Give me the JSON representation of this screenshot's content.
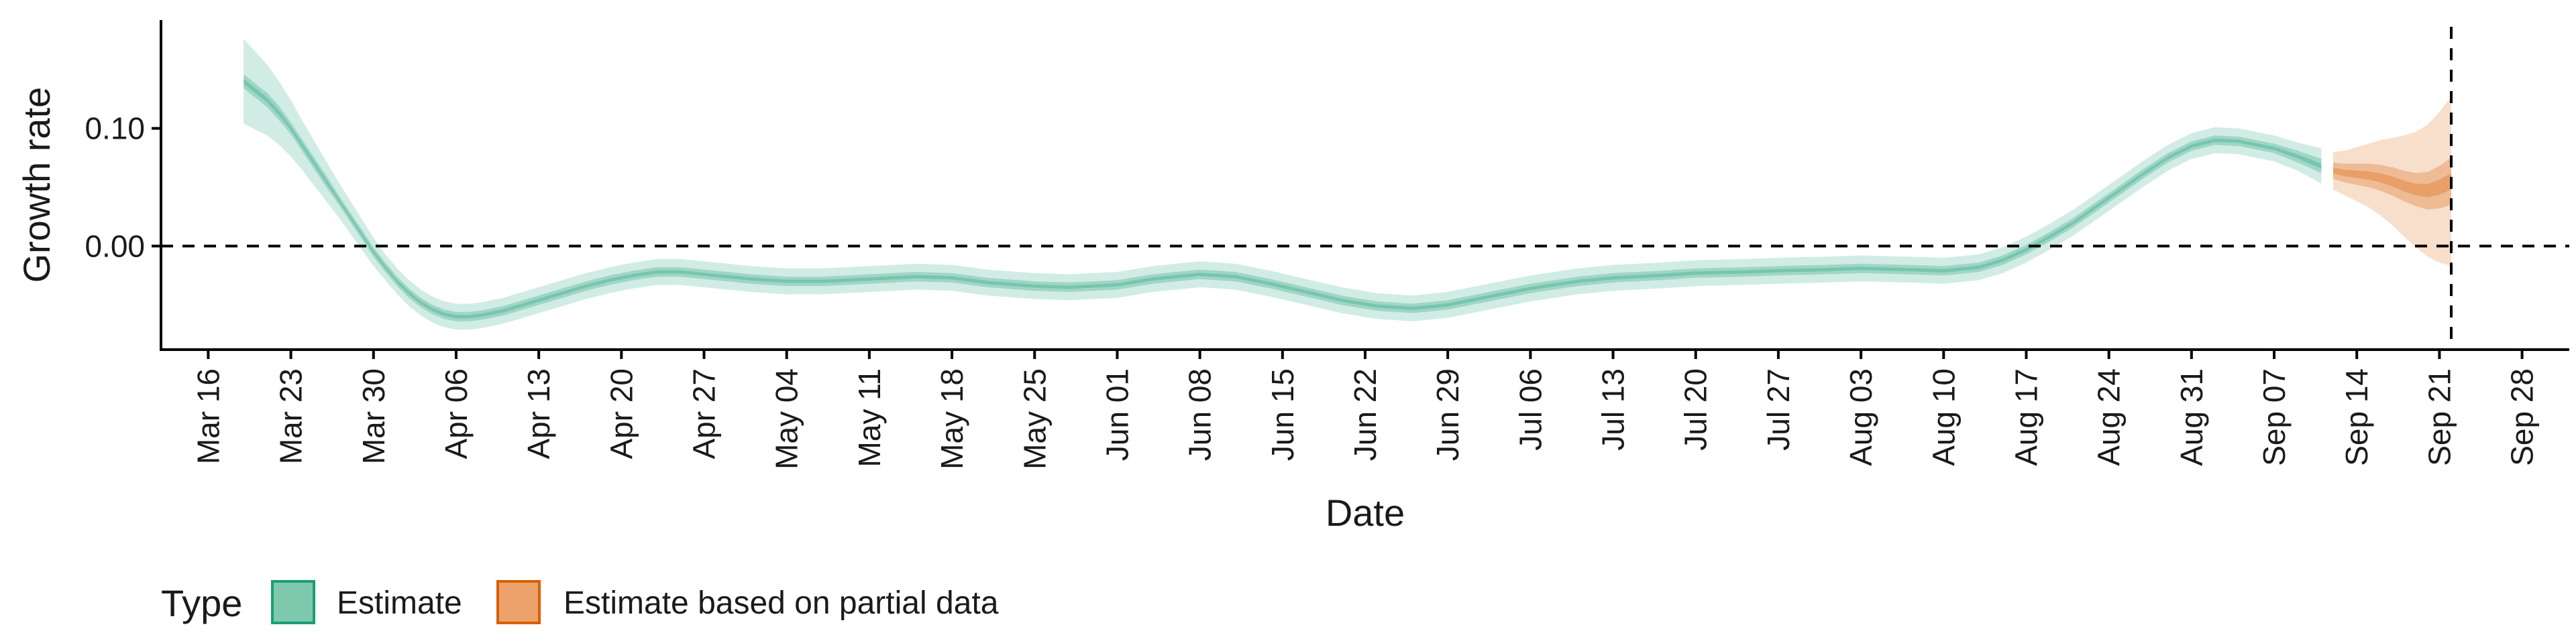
{
  "chart_data": {
    "type": "area",
    "xlabel": "Date",
    "ylabel": "Growth rate",
    "x_type": "date",
    "xlim": [
      "2020-03-12",
      "2020-10-02"
    ],
    "ylim": [
      -0.088,
      0.192
    ],
    "y_ticks": [
      0.0,
      0.1
    ],
    "y_tick_labels": [
      "0.00",
      "0.10"
    ],
    "x_ticks": [
      "2020-03-16",
      "2020-03-23",
      "2020-03-30",
      "2020-04-06",
      "2020-04-13",
      "2020-04-20",
      "2020-04-27",
      "2020-05-04",
      "2020-05-11",
      "2020-05-18",
      "2020-05-25",
      "2020-06-01",
      "2020-06-08",
      "2020-06-15",
      "2020-06-22",
      "2020-06-29",
      "2020-07-06",
      "2020-07-13",
      "2020-07-20",
      "2020-07-27",
      "2020-08-03",
      "2020-08-10",
      "2020-08-17",
      "2020-08-24",
      "2020-08-31",
      "2020-09-07",
      "2020-09-14",
      "2020-09-21",
      "2020-09-28"
    ],
    "x_tick_labels": [
      "Mar 16",
      "Mar 23",
      "Mar 30",
      "Apr 06",
      "Apr 13",
      "Apr 20",
      "Apr 27",
      "May 04",
      "May 11",
      "May 18",
      "May 25",
      "Jun 01",
      "Jun 08",
      "Jun 15",
      "Jun 22",
      "Jun 29",
      "Jul 06",
      "Jul 13",
      "Jul 20",
      "Jul 27",
      "Aug 03",
      "Aug 10",
      "Aug 17",
      "Aug 24",
      "Aug 31",
      "Sep 07",
      "Sep 14",
      "Sep 21",
      "Sep 28"
    ],
    "reference_lines": {
      "hline_y": 0.0,
      "vline_x": "2020-09-22",
      "style": "dashed"
    },
    "grid": false,
    "legend": {
      "title": "Type",
      "position": "bottom-left",
      "entries": [
        {
          "label": "Estimate",
          "fill": "#7ec9ad",
          "border": "#1b9e77"
        },
        {
          "label": "Estimate based on partial data",
          "fill": "#eda26c",
          "border": "#d95f02"
        }
      ]
    },
    "series": [
      {
        "name": "Estimate",
        "color": "#1b9e77",
        "x": [
          "2020-03-19",
          "2020-03-20",
          "2020-03-21",
          "2020-03-22",
          "2020-03-23",
          "2020-03-24",
          "2020-03-25",
          "2020-03-26",
          "2020-03-27",
          "2020-03-28",
          "2020-03-29",
          "2020-03-30",
          "2020-03-31",
          "2020-04-01",
          "2020-04-02",
          "2020-04-03",
          "2020-04-04",
          "2020-04-05",
          "2020-04-06",
          "2020-04-07",
          "2020-04-08",
          "2020-04-09",
          "2020-04-10",
          "2020-04-11",
          "2020-04-12",
          "2020-04-13",
          "2020-04-15",
          "2020-04-17",
          "2020-04-19",
          "2020-04-21",
          "2020-04-23",
          "2020-04-25",
          "2020-04-27",
          "2020-04-29",
          "2020-05-01",
          "2020-05-04",
          "2020-05-07",
          "2020-05-11",
          "2020-05-15",
          "2020-05-18",
          "2020-05-21",
          "2020-05-25",
          "2020-05-28",
          "2020-06-01",
          "2020-06-04",
          "2020-06-08",
          "2020-06-11",
          "2020-06-14",
          "2020-06-17",
          "2020-06-20",
          "2020-06-23",
          "2020-06-26",
          "2020-06-29",
          "2020-07-02",
          "2020-07-06",
          "2020-07-10",
          "2020-07-13",
          "2020-07-17",
          "2020-07-20",
          "2020-07-24",
          "2020-07-27",
          "2020-07-31",
          "2020-08-03",
          "2020-08-07",
          "2020-08-10",
          "2020-08-13",
          "2020-08-15",
          "2020-08-17",
          "2020-08-19",
          "2020-08-21",
          "2020-08-23",
          "2020-08-25",
          "2020-08-27",
          "2020-08-29",
          "2020-08-31",
          "2020-09-02",
          "2020-09-04",
          "2020-09-07",
          "2020-09-09",
          "2020-09-11"
        ],
        "y": [
          0.14,
          0.132,
          0.124,
          0.113,
          0.1,
          0.085,
          0.07,
          0.055,
          0.04,
          0.025,
          0.01,
          -0.005,
          -0.018,
          -0.03,
          -0.04,
          -0.048,
          -0.054,
          -0.058,
          -0.06,
          -0.06,
          -0.059,
          -0.057,
          -0.055,
          -0.052,
          -0.049,
          -0.046,
          -0.04,
          -0.034,
          -0.029,
          -0.025,
          -0.022,
          -0.022,
          -0.024,
          -0.026,
          -0.028,
          -0.03,
          -0.03,
          -0.028,
          -0.026,
          -0.027,
          -0.031,
          -0.034,
          -0.035,
          -0.033,
          -0.028,
          -0.024,
          -0.026,
          -0.032,
          -0.039,
          -0.046,
          -0.051,
          -0.053,
          -0.05,
          -0.044,
          -0.036,
          -0.03,
          -0.027,
          -0.025,
          -0.023,
          -0.022,
          -0.021,
          -0.02,
          -0.019,
          -0.02,
          -0.021,
          -0.018,
          -0.012,
          -0.003,
          0.008,
          0.02,
          0.034,
          0.048,
          0.062,
          0.075,
          0.085,
          0.09,
          0.089,
          0.083,
          0.076,
          0.068
        ],
        "ci50": [
          0.006,
          0.006,
          0.006,
          0.006,
          0.005,
          0.005,
          0.005,
          0.005,
          0.004,
          0.004,
          0.004,
          0.004,
          0.004,
          0.004,
          0.004,
          0.004,
          0.004,
          0.004,
          0.004,
          0.004,
          0.004,
          0.004,
          0.004,
          0.004,
          0.004,
          0.004,
          0.004,
          0.004,
          0.004,
          0.004,
          0.004,
          0.004,
          0.004,
          0.004,
          0.004,
          0.004,
          0.004,
          0.004,
          0.004,
          0.004,
          0.004,
          0.004,
          0.004,
          0.004,
          0.004,
          0.004,
          0.004,
          0.004,
          0.004,
          0.004,
          0.004,
          0.004,
          0.004,
          0.004,
          0.004,
          0.004,
          0.004,
          0.004,
          0.004,
          0.004,
          0.004,
          0.004,
          0.004,
          0.004,
          0.004,
          0.004,
          0.004,
          0.004,
          0.004,
          0.004,
          0.004,
          0.004,
          0.004,
          0.004,
          0.004,
          0.004,
          0.004,
          0.004,
          0.005,
          0.006
        ],
        "ci90": [
          0.036,
          0.033,
          0.03,
          0.027,
          0.024,
          0.021,
          0.019,
          0.017,
          0.015,
          0.014,
          0.013,
          0.012,
          0.011,
          0.011,
          0.011,
          0.011,
          0.011,
          0.011,
          0.011,
          0.011,
          0.011,
          0.011,
          0.011,
          0.011,
          0.011,
          0.011,
          0.011,
          0.011,
          0.011,
          0.011,
          0.011,
          0.011,
          0.011,
          0.011,
          0.011,
          0.011,
          0.011,
          0.011,
          0.011,
          0.011,
          0.011,
          0.011,
          0.011,
          0.011,
          0.011,
          0.011,
          0.011,
          0.011,
          0.011,
          0.011,
          0.011,
          0.011,
          0.011,
          0.011,
          0.011,
          0.011,
          0.011,
          0.011,
          0.011,
          0.011,
          0.011,
          0.011,
          0.011,
          0.011,
          0.011,
          0.011,
          0.011,
          0.011,
          0.011,
          0.011,
          0.011,
          0.011,
          0.011,
          0.011,
          0.011,
          0.011,
          0.011,
          0.011,
          0.012,
          0.015
        ]
      },
      {
        "name": "Estimate based on partial data",
        "color": "#d95f02",
        "x": [
          "2020-09-12",
          "2020-09-13",
          "2020-09-14",
          "2020-09-15",
          "2020-09-16",
          "2020-09-17",
          "2020-09-18",
          "2020-09-19",
          "2020-09-20",
          "2020-09-21",
          "2020-09-22"
        ],
        "y": [
          0.064,
          0.062,
          0.061,
          0.06,
          0.058,
          0.055,
          0.051,
          0.048,
          0.047,
          0.05,
          0.055
        ],
        "ci50": [
          0.007,
          0.008,
          0.009,
          0.01,
          0.011,
          0.012,
          0.013,
          0.014,
          0.016,
          0.018,
          0.02
        ],
        "ci90": [
          0.016,
          0.019,
          0.023,
          0.027,
          0.032,
          0.037,
          0.043,
          0.049,
          0.056,
          0.064,
          0.072
        ]
      }
    ]
  }
}
